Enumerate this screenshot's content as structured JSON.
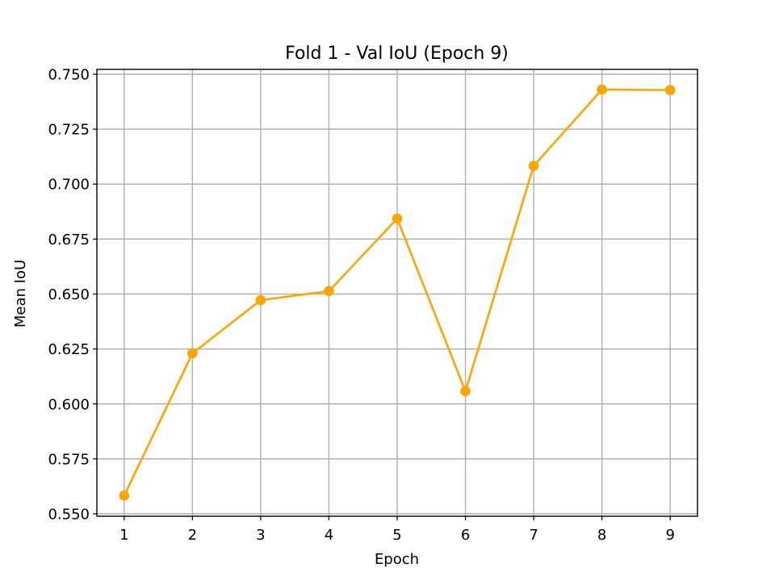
{
  "chart_data": {
    "type": "line",
    "title": "Fold 1 - Val IoU (Epoch 9)",
    "xlabel": "Epoch",
    "ylabel": "Mean IoU",
    "x": [
      1,
      2,
      3,
      4,
      5,
      6,
      7,
      8,
      9
    ],
    "x_ticks": [
      "1",
      "2",
      "3",
      "4",
      "5",
      "6",
      "7",
      "8",
      "9"
    ],
    "y_ticks": [
      "0.550",
      "0.575",
      "0.600",
      "0.625",
      "0.650",
      "0.675",
      "0.700",
      "0.725",
      "0.750"
    ],
    "xlim": [
      0.6,
      9.4
    ],
    "ylim": [
      0.5489,
      0.7522
    ],
    "grid": true,
    "legend": "none",
    "series": [
      {
        "values": [
          0.5583,
          0.623,
          0.6472,
          0.6513,
          0.6843,
          0.6058,
          0.7083,
          0.743,
          0.7428
        ],
        "color": "#ffa500",
        "marker": "circle"
      }
    ]
  }
}
